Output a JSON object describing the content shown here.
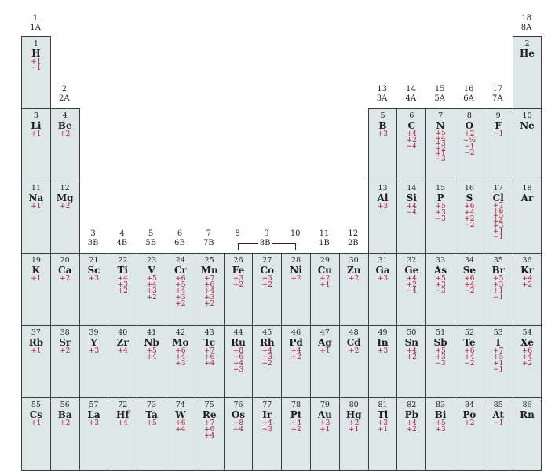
{
  "groups": [
    {
      "col": 1,
      "num": "1",
      "label": "1A"
    },
    {
      "col": 2,
      "num": "2",
      "label": "2A"
    },
    {
      "col": 3,
      "num": "3",
      "label": "3B"
    },
    {
      "col": 4,
      "num": "4",
      "label": "4B"
    },
    {
      "col": 5,
      "num": "5",
      "label": "5B"
    },
    {
      "col": 6,
      "num": "6",
      "label": "6B"
    },
    {
      "col": 7,
      "num": "7",
      "label": "7B"
    },
    {
      "col": 8,
      "num": "8",
      "label": ""
    },
    {
      "col": 9,
      "num": "9",
      "label": ""
    },
    {
      "col": 10,
      "num": "10",
      "label": ""
    },
    {
      "col": 11,
      "num": "11",
      "label": "1B"
    },
    {
      "col": 12,
      "num": "12",
      "label": "2B"
    },
    {
      "col": 13,
      "num": "13",
      "label": "3A"
    },
    {
      "col": 14,
      "num": "14",
      "label": "4A"
    },
    {
      "col": 15,
      "num": "15",
      "label": "5A"
    },
    {
      "col": 16,
      "num": "16",
      "label": "6A"
    },
    {
      "col": 17,
      "num": "17",
      "label": "7A"
    },
    {
      "col": 18,
      "num": "18",
      "label": "8A"
    }
  ],
  "group8b_label": "8B",
  "elements": [
    {
      "n": "1",
      "s": "H",
      "ox": [
        "+1",
        "−1"
      ],
      "col": 1,
      "row": 1
    },
    {
      "n": "2",
      "s": "He",
      "ox": [],
      "col": 18,
      "row": 1
    },
    {
      "n": "3",
      "s": "Li",
      "ox": [
        "+1"
      ],
      "col": 1,
      "row": 2
    },
    {
      "n": "4",
      "s": "Be",
      "ox": [
        "+2"
      ],
      "col": 2,
      "row": 2
    },
    {
      "n": "5",
      "s": "B",
      "ox": [
        "+3"
      ],
      "col": 13,
      "row": 2
    },
    {
      "n": "6",
      "s": "C",
      "ox": [
        "+4",
        "+2",
        "−4"
      ],
      "col": 14,
      "row": 2
    },
    {
      "n": "7",
      "s": "N",
      "ox": [
        "+5",
        "+4",
        "+3",
        "+2",
        "+1",
        "−3"
      ],
      "col": 15,
      "row": 2
    },
    {
      "n": "8",
      "s": "O",
      "ox": [
        "+2",
        "−½",
        "−1",
        "−2"
      ],
      "col": 16,
      "row": 2
    },
    {
      "n": "9",
      "s": "F",
      "ox": [
        "−1"
      ],
      "col": 17,
      "row": 2
    },
    {
      "n": "10",
      "s": "Ne",
      "ox": [],
      "col": 18,
      "row": 2
    },
    {
      "n": "11",
      "s": "Na",
      "ox": [
        "+1"
      ],
      "col": 1,
      "row": 3
    },
    {
      "n": "12",
      "s": "Mg",
      "ox": [
        "+2"
      ],
      "col": 2,
      "row": 3
    },
    {
      "n": "13",
      "s": "Al",
      "ox": [
        "+3"
      ],
      "col": 13,
      "row": 3
    },
    {
      "n": "14",
      "s": "Si",
      "ox": [
        "+4",
        "−4"
      ],
      "col": 14,
      "row": 3
    },
    {
      "n": "15",
      "s": "P",
      "ox": [
        "+5",
        "+3",
        "−3"
      ],
      "col": 15,
      "row": 3
    },
    {
      "n": "16",
      "s": "S",
      "ox": [
        "+6",
        "+4",
        "+2",
        "−2"
      ],
      "col": 16,
      "row": 3
    },
    {
      "n": "17",
      "s": "Cl",
      "ox": [
        "+7",
        "+6",
        "+5",
        "+4",
        "+3",
        "+1",
        "−1"
      ],
      "col": 17,
      "row": 3
    },
    {
      "n": "18",
      "s": "Ar",
      "ox": [],
      "col": 18,
      "row": 3
    },
    {
      "n": "19",
      "s": "K",
      "ox": [
        "+1"
      ],
      "col": 1,
      "row": 4
    },
    {
      "n": "20",
      "s": "Ca",
      "ox": [
        "+2"
      ],
      "col": 2,
      "row": 4
    },
    {
      "n": "21",
      "s": "Sc",
      "ox": [
        "+3"
      ],
      "col": 3,
      "row": 4
    },
    {
      "n": "22",
      "s": "Ti",
      "ox": [
        "+4",
        "+3",
        "+2"
      ],
      "col": 4,
      "row": 4
    },
    {
      "n": "23",
      "s": "V",
      "ox": [
        "+5",
        "+4",
        "+3",
        "+2"
      ],
      "col": 5,
      "row": 4
    },
    {
      "n": "24",
      "s": "Cr",
      "ox": [
        "+6",
        "+5",
        "+4",
        "+3",
        "+2"
      ],
      "col": 6,
      "row": 4
    },
    {
      "n": "25",
      "s": "Mn",
      "ox": [
        "+7",
        "+6",
        "+4",
        "+3",
        "+2"
      ],
      "col": 7,
      "row": 4
    },
    {
      "n": "26",
      "s": "Fe",
      "ox": [
        "+3",
        "+2"
      ],
      "col": 8,
      "row": 4
    },
    {
      "n": "27",
      "s": "Co",
      "ox": [
        "+3",
        "+2"
      ],
      "col": 9,
      "row": 4
    },
    {
      "n": "28",
      "s": "Ni",
      "ox": [
        "+2"
      ],
      "col": 10,
      "row": 4
    },
    {
      "n": "29",
      "s": "Cu",
      "ox": [
        "+2",
        "+1"
      ],
      "col": 11,
      "row": 4
    },
    {
      "n": "30",
      "s": "Zn",
      "ox": [
        "+2"
      ],
      "col": 12,
      "row": 4
    },
    {
      "n": "31",
      "s": "Ga",
      "ox": [
        "+3"
      ],
      "col": 13,
      "row": 4
    },
    {
      "n": "32",
      "s": "Ge",
      "ox": [
        "+4",
        "+2",
        "−4"
      ],
      "col": 14,
      "row": 4
    },
    {
      "n": "33",
      "s": "As",
      "ox": [
        "+5",
        "+3",
        "−3"
      ],
      "col": 15,
      "row": 4
    },
    {
      "n": "34",
      "s": "Se",
      "ox": [
        "+6",
        "+4",
        "−2"
      ],
      "col": 16,
      "row": 4
    },
    {
      "n": "35",
      "s": "Br",
      "ox": [
        "+5",
        "+3",
        "+1",
        "−1"
      ],
      "col": 17,
      "row": 4
    },
    {
      "n": "36",
      "s": "Kr",
      "ox": [
        "+4",
        "+2"
      ],
      "col": 18,
      "row": 4
    },
    {
      "n": "37",
      "s": "Rb",
      "ox": [
        "+1"
      ],
      "col": 1,
      "row": 5
    },
    {
      "n": "38",
      "s": "Sr",
      "ox": [
        "+2"
      ],
      "col": 2,
      "row": 5
    },
    {
      "n": "39",
      "s": "Y",
      "ox": [
        "+3"
      ],
      "col": 3,
      "row": 5
    },
    {
      "n": "40",
      "s": "Zr",
      "ox": [
        "+4"
      ],
      "col": 4,
      "row": 5
    },
    {
      "n": "41",
      "s": "Nb",
      "ox": [
        "+5",
        "+4"
      ],
      "col": 5,
      "row": 5
    },
    {
      "n": "42",
      "s": "Mo",
      "ox": [
        "+6",
        "+4",
        "+3"
      ],
      "col": 6,
      "row": 5
    },
    {
      "n": "43",
      "s": "Tc",
      "ox": [
        "+7",
        "+6",
        "+4"
      ],
      "col": 7,
      "row": 5
    },
    {
      "n": "44",
      "s": "Ru",
      "ox": [
        "+8",
        "+6",
        "+4",
        "+3"
      ],
      "col": 8,
      "row": 5
    },
    {
      "n": "45",
      "s": "Rh",
      "ox": [
        "+4",
        "+3",
        "+2"
      ],
      "col": 9,
      "row": 5
    },
    {
      "n": "46",
      "s": "Pd",
      "ox": [
        "+4",
        "+2"
      ],
      "col": 10,
      "row": 5
    },
    {
      "n": "47",
      "s": "Ag",
      "ox": [
        "+1"
      ],
      "col": 11,
      "row": 5
    },
    {
      "n": "48",
      "s": "Cd",
      "ox": [
        "+2"
      ],
      "col": 12,
      "row": 5
    },
    {
      "n": "49",
      "s": "In",
      "ox": [
        "+3"
      ],
      "col": 13,
      "row": 5
    },
    {
      "n": "50",
      "s": "Sn",
      "ox": [
        "+4",
        "+2"
      ],
      "col": 14,
      "row": 5
    },
    {
      "n": "51",
      "s": "Sb",
      "ox": [
        "+5",
        "+3",
        "−3"
      ],
      "col": 15,
      "row": 5
    },
    {
      "n": "52",
      "s": "Te",
      "ox": [
        "+6",
        "+4",
        "−2"
      ],
      "col": 16,
      "row": 5
    },
    {
      "n": "53",
      "s": "I",
      "ox": [
        "+7",
        "+5",
        "+1",
        "−1"
      ],
      "col": 17,
      "row": 5
    },
    {
      "n": "54",
      "s": "Xe",
      "ox": [
        "+6",
        "+4",
        "+2"
      ],
      "col": 18,
      "row": 5
    },
    {
      "n": "55",
      "s": "Cs",
      "ox": [
        "+1"
      ],
      "col": 1,
      "row": 6
    },
    {
      "n": "56",
      "s": "Ba",
      "ox": [
        "+2"
      ],
      "col": 2,
      "row": 6
    },
    {
      "n": "57",
      "s": "La",
      "ox": [
        "+3"
      ],
      "col": 3,
      "row": 6
    },
    {
      "n": "72",
      "s": "Hf",
      "ox": [
        "+4"
      ],
      "col": 4,
      "row": 6
    },
    {
      "n": "73",
      "s": "Ta",
      "ox": [
        "+5"
      ],
      "col": 5,
      "row": 6
    },
    {
      "n": "74",
      "s": "W",
      "ox": [
        "+6",
        "+4"
      ],
      "col": 6,
      "row": 6
    },
    {
      "n": "75",
      "s": "Re",
      "ox": [
        "+7",
        "+6",
        "+4"
      ],
      "col": 7,
      "row": 6
    },
    {
      "n": "76",
      "s": "Os",
      "ox": [
        "+8",
        "+4"
      ],
      "col": 8,
      "row": 6
    },
    {
      "n": "77",
      "s": "Ir",
      "ox": [
        "+4",
        "+3"
      ],
      "col": 9,
      "row": 6
    },
    {
      "n": "78",
      "s": "Pt",
      "ox": [
        "+4",
        "+2"
      ],
      "col": 10,
      "row": 6
    },
    {
      "n": "79",
      "s": "Au",
      "ox": [
        "+3",
        "+1"
      ],
      "col": 11,
      "row": 6
    },
    {
      "n": "80",
      "s": "Hg",
      "ox": [
        "+2",
        "+1"
      ],
      "col": 12,
      "row": 6
    },
    {
      "n": "81",
      "s": "Tl",
      "ox": [
        "+3",
        "+1"
      ],
      "col": 13,
      "row": 6
    },
    {
      "n": "82",
      "s": "Pb",
      "ox": [
        "+4",
        "+2"
      ],
      "col": 14,
      "row": 6
    },
    {
      "n": "83",
      "s": "Bi",
      "ox": [
        "+5",
        "+3"
      ],
      "col": 15,
      "row": 6
    },
    {
      "n": "84",
      "s": "Po",
      "ox": [
        "+2"
      ],
      "col": 16,
      "row": 6
    },
    {
      "n": "85",
      "s": "At",
      "ox": [
        "−1"
      ],
      "col": 17,
      "row": 6
    },
    {
      "n": "86",
      "s": "Rn",
      "ox": [],
      "col": 18,
      "row": 6
    }
  ]
}
